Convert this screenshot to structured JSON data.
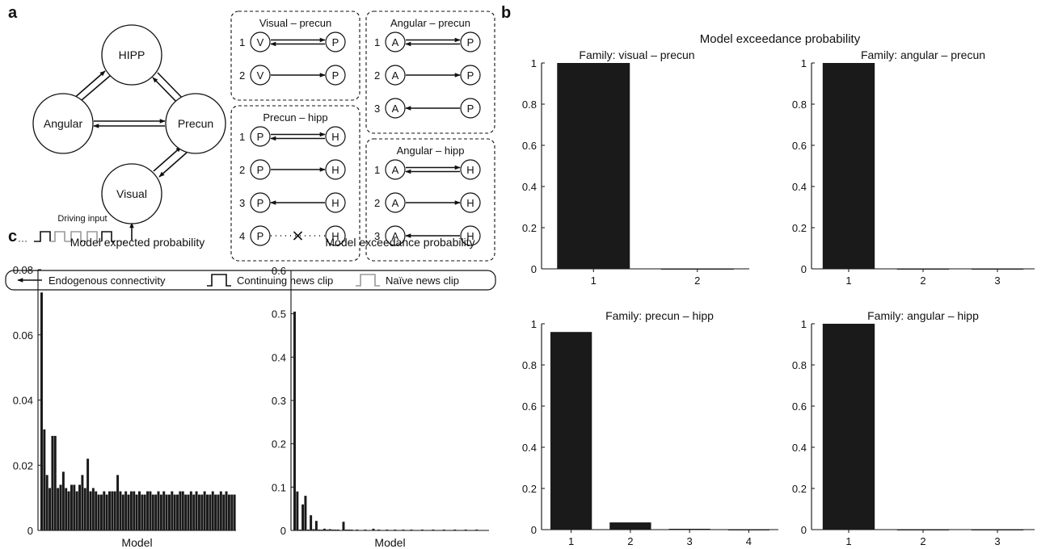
{
  "panels": {
    "a": "a",
    "b": "b",
    "c": "c"
  },
  "panel_a": {
    "nodes": {
      "hipp": "HIPP",
      "angular": "Angular",
      "precun": "Precun",
      "visual": "Visual"
    },
    "driving_input": "Driving input",
    "families": [
      {
        "title": "Visual – precun",
        "models": [
          {
            "num": "1",
            "left": "V",
            "right": "P",
            "conn": "bi"
          },
          {
            "num": "2",
            "left": "V",
            "right": "P",
            "conn": "fwd"
          }
        ]
      },
      {
        "title": "Angular – precun",
        "models": [
          {
            "num": "1",
            "left": "A",
            "right": "P",
            "conn": "bi"
          },
          {
            "num": "2",
            "left": "A",
            "right": "P",
            "conn": "fwd"
          },
          {
            "num": "3",
            "left": "A",
            "right": "P",
            "conn": "back"
          }
        ]
      },
      {
        "title": "Precun – hipp",
        "models": [
          {
            "num": "1",
            "left": "P",
            "right": "H",
            "conn": "bi"
          },
          {
            "num": "2",
            "left": "P",
            "right": "H",
            "conn": "fwd"
          },
          {
            "num": "3",
            "left": "P",
            "right": "H",
            "conn": "back"
          },
          {
            "num": "4",
            "left": "P",
            "right": "H",
            "conn": "none"
          }
        ]
      },
      {
        "title": "Angular – hipp",
        "models": [
          {
            "num": "1",
            "left": "A",
            "right": "H",
            "conn": "bi"
          },
          {
            "num": "2",
            "left": "A",
            "right": "H",
            "conn": "fwd"
          },
          {
            "num": "3",
            "left": "A",
            "right": "H",
            "conn": "back"
          }
        ]
      }
    ],
    "legend": {
      "endogenous": "Endogenous  connectivity",
      "continuing": "Continuing news clip",
      "naive": "Naïve news clip"
    },
    "colors": {
      "continuing": "#111111",
      "naive": "#999999"
    }
  },
  "panel_b": {
    "header": "Model exceedance probability"
  },
  "chart_data": [
    {
      "id": "c1",
      "type": "bar",
      "title": "Model expected probability",
      "xlabel": "Model",
      "ylabel": "",
      "ylim": [
        0,
        0.08
      ],
      "yticks": [
        0,
        0.02,
        0.04,
        0.06,
        0.08
      ],
      "yticklabels": [
        "0",
        "0.02",
        "0.04",
        "0.06",
        "0.08"
      ],
      "values": [
        0.073,
        0.031,
        0.017,
        0.013,
        0.029,
        0.029,
        0.013,
        0.014,
        0.018,
        0.013,
        0.012,
        0.014,
        0.014,
        0.012,
        0.014,
        0.017,
        0.013,
        0.022,
        0.012,
        0.013,
        0.012,
        0.011,
        0.011,
        0.012,
        0.011,
        0.012,
        0.012,
        0.012,
        0.017,
        0.012,
        0.011,
        0.012,
        0.011,
        0.012,
        0.012,
        0.011,
        0.012,
        0.011,
        0.011,
        0.012,
        0.012,
        0.011,
        0.011,
        0.012,
        0.011,
        0.012,
        0.011,
        0.011,
        0.012,
        0.011,
        0.011,
        0.012,
        0.012,
        0.011,
        0.011,
        0.012,
        0.011,
        0.012,
        0.011,
        0.011,
        0.012,
        0.011,
        0.011,
        0.012,
        0.011,
        0.011,
        0.012,
        0.011,
        0.012,
        0.011,
        0.011,
        0.011
      ]
    },
    {
      "id": "c2",
      "type": "bar",
      "title": "Model exceedance probability",
      "xlabel": "Model",
      "ylabel": "",
      "ylim": [
        0,
        0.6
      ],
      "yticks": [
        0,
        0.1,
        0.2,
        0.3,
        0.4,
        0.5,
        0.6
      ],
      "yticklabels": [
        "0",
        "0.1",
        "0.2",
        "0.3",
        "0.4",
        "0.5",
        "0.6"
      ],
      "values": [
        0.505,
        0.09,
        0.002,
        0.06,
        0.08,
        0.002,
        0.035,
        0.003,
        0.022,
        0.002,
        0.002,
        0.004,
        0.002,
        0.003,
        0.002,
        0.002,
        0.002,
        0.001,
        0.02,
        0.002,
        0.002,
        0.002,
        0.001,
        0.002,
        0.001,
        0.001,
        0.002,
        0.001,
        0.001,
        0.004,
        0.001,
        0.002,
        0.001,
        0.001,
        0.002,
        0.001,
        0.001,
        0.002,
        0.001,
        0.001,
        0.002,
        0.001,
        0.001,
        0.002,
        0.001,
        0.001,
        0.001,
        0.002,
        0.001,
        0.001,
        0.001,
        0.002,
        0.001,
        0.001,
        0.001,
        0.002,
        0.001,
        0.001,
        0.001,
        0.002,
        0.001,
        0.001,
        0.001,
        0.002,
        0.001,
        0.001,
        0.001,
        0.002,
        0.001,
        0.001,
        0.001,
        0.001
      ]
    },
    {
      "id": "b1",
      "type": "bar",
      "title": "Family: visual – precun",
      "xlabel": "",
      "ylabel": "",
      "ylim": [
        0,
        1
      ],
      "yticks": [
        0,
        0.2,
        0.4,
        0.6,
        0.8,
        1
      ],
      "yticklabels": [
        "0",
        "0.2",
        "0.4",
        "0.6",
        "0.8",
        "1"
      ],
      "categories": [
        "1",
        "2"
      ],
      "values": [
        1.0,
        0.001
      ]
    },
    {
      "id": "b2",
      "type": "bar",
      "title": "Family: angular – precun",
      "xlabel": "",
      "ylabel": "",
      "ylim": [
        0,
        1
      ],
      "yticks": [
        0,
        0.2,
        0.4,
        0.6,
        0.8,
        1
      ],
      "yticklabels": [
        "0",
        "0.2",
        "0.4",
        "0.6",
        "0.8",
        "1"
      ],
      "categories": [
        "1",
        "2",
        "3"
      ],
      "values": [
        1.0,
        0.001,
        0.001
      ]
    },
    {
      "id": "b3",
      "type": "bar",
      "title": "Family: precun – hipp",
      "xlabel": "",
      "ylabel": "",
      "ylim": [
        0,
        1
      ],
      "yticks": [
        0,
        0.2,
        0.4,
        0.6,
        0.8,
        1
      ],
      "yticklabels": [
        "0",
        "0.2",
        "0.4",
        "0.6",
        "0.8",
        "1"
      ],
      "categories": [
        "1",
        "2",
        "3",
        "4"
      ],
      "values": [
        0.96,
        0.035,
        0.004,
        0.001
      ]
    },
    {
      "id": "b4",
      "type": "bar",
      "title": "Family: angular – hipp",
      "xlabel": "",
      "ylabel": "",
      "ylim": [
        0,
        1
      ],
      "yticks": [
        0,
        0.2,
        0.4,
        0.6,
        0.8,
        1
      ],
      "yticklabels": [
        "0",
        "0.2",
        "0.4",
        "0.6",
        "0.8",
        "1"
      ],
      "categories": [
        "1",
        "2",
        "3"
      ],
      "values": [
        1.0,
        0.001,
        0.001
      ]
    }
  ]
}
